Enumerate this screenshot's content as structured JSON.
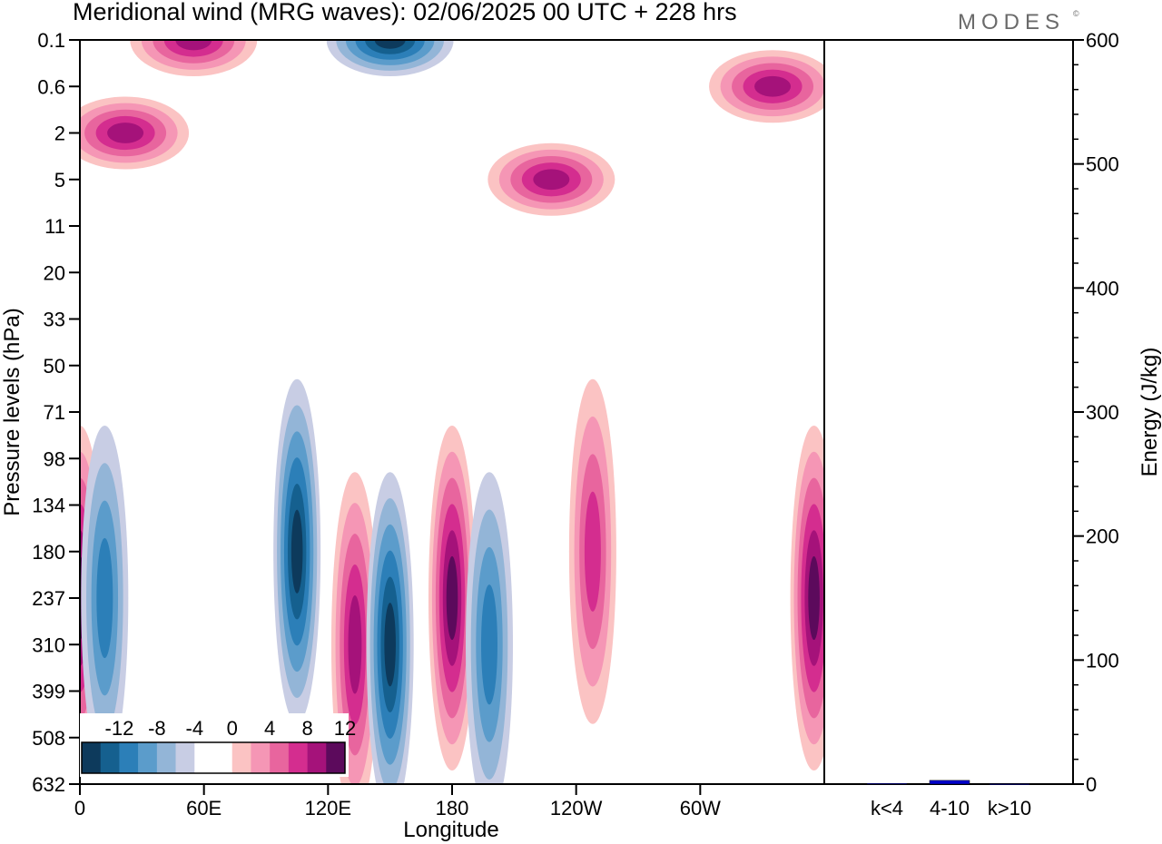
{
  "title": "Meridional wind (MRG waves):  02/06/2025  00 UTC  + 228 hrs",
  "logo": "MODES",
  "logo_mark": "©",
  "chart_data": [
    {
      "type": "heatmap",
      "title": "Meridional wind (MRG waves):  02/06/2025  00 UTC  + 228 hrs",
      "xlabel": "Longitude",
      "ylabel": "Pressure levels (hPa)",
      "x_ticks": [
        "0",
        "60E",
        "120E",
        "180",
        "120W",
        "60W"
      ],
      "y_ticks": [
        "0.1",
        "0.6",
        "2",
        "5",
        "11",
        "20",
        "33",
        "50",
        "71",
        "98",
        "134",
        "180",
        "237",
        "310",
        "399",
        "508",
        "632"
      ],
      "colorbar": {
        "labels": [
          "-12",
          "-8",
          "-4",
          "0",
          "4",
          "8",
          "12"
        ],
        "colors": [
          "#0d3a5c",
          "#15608f",
          "#2c7fb8",
          "#5b9ccb",
          "#93b5d7",
          "#c8cde4",
          "#ffffff",
          "#ffffff",
          "#fbc3c3",
          "#f596b5",
          "#e8659e",
          "#d42d8f",
          "#a5127a",
          "#5c0a5c"
        ]
      },
      "features": [
        {
          "lon": 0,
          "level": "237",
          "value": 14
        },
        {
          "lon": 12,
          "level": "237",
          "value": -9
        },
        {
          "lon": 105,
          "level": "180",
          "value": -14
        },
        {
          "lon": 133,
          "level": "310",
          "value": 13
        },
        {
          "lon": 150,
          "level": "310",
          "value": -14
        },
        {
          "lon": 180,
          "level": "237",
          "value": 14
        },
        {
          "lon": 198,
          "level": "310",
          "value": -10
        },
        {
          "lon": 248,
          "level": "180",
          "value": 10
        },
        {
          "lon": 355,
          "level": "237",
          "value": 14
        },
        {
          "lon": 150,
          "level": "0.1",
          "value": -16
        },
        {
          "lon": 55,
          "level": "0.1",
          "value": 13
        },
        {
          "lon": 22,
          "level": "2",
          "value": 12
        },
        {
          "lon": 228,
          "level": "5",
          "value": 13
        },
        {
          "lon": 335,
          "level": "0.6",
          "value": 12
        }
      ]
    },
    {
      "type": "bar",
      "ylabel": "Energy (J/kg)",
      "categories": [
        "k<4",
        "4-10",
        "k>10"
      ],
      "values": [
        0.5,
        3,
        0.3
      ],
      "ylim": [
        0,
        600
      ],
      "y_ticks": [
        "0",
        "100",
        "200",
        "300",
        "400",
        "500",
        "600"
      ],
      "bar_color": "#0000cc"
    }
  ]
}
